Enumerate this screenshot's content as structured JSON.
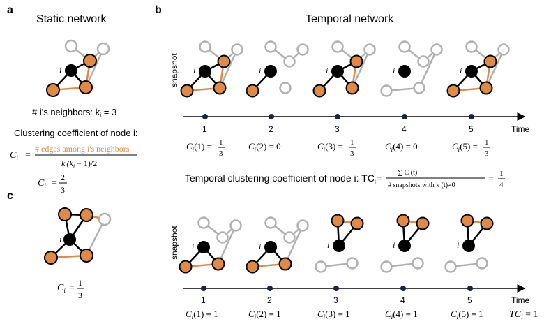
{
  "colors": {
    "orange": "#E08A43",
    "black": "#000000",
    "gray": "#B0B0B0",
    "white": "#FFFFFF"
  },
  "panel_a": {
    "label": "a",
    "title": "Static network",
    "node_i": "i",
    "neighbors_text": "# i's neighbors: k",
    "neighbors_sub": "i",
    "neighbors_eq": " = 3",
    "cc_title": "Clustering coefficient of node i:",
    "ci_lhs": "C",
    "ci_sub": "i",
    "ci_eq": "=",
    "numerator": "# edges among i's neighbors",
    "denominator": "k",
    "denominator_rest": "(k",
    "denominator_tail": " − 1)/2",
    "ci_result_num": "2",
    "ci_result_den": "3"
  },
  "panel_b": {
    "label": "b",
    "title": "Temporal network",
    "y_label": "snapshot",
    "time_label": "Time",
    "ticks": [
      "1",
      "2",
      "3",
      "4",
      "5"
    ],
    "top_values": [
      {
        "lhs": "C",
        "sub": "i",
        "arg": "(1) =",
        "num": "1",
        "den": "3"
      },
      {
        "lhs": "C",
        "sub": "i",
        "arg": "(2) = 0"
      },
      {
        "lhs": "C",
        "sub": "i",
        "arg": "(3) =",
        "num": "1",
        "den": "3"
      },
      {
        "lhs": "C",
        "sub": "i",
        "arg": "(4) = 0"
      },
      {
        "lhs": "C",
        "sub": "i",
        "arg": "(5) =",
        "num": "1",
        "den": "3"
      }
    ],
    "tcc_text": "Temporal clustering coefficient of node i: TC",
    "tcc_sub": "i",
    "tcc_num": "∑ C (t)",
    "tcc_num_sup": "5",
    "tcc_num_lower": "t=1",
    "tcc_den": "# snapshots with k (t)≠0",
    "tcc_eq": "=",
    "tcc_result_num": "1",
    "tcc_result_den": "4",
    "bottom_values": [
      "C(1) = 1",
      "C(2) = 1",
      "C(3) = 1",
      "C(4) = 1",
      "C(5) = 1"
    ],
    "bottom_lhs": "C",
    "bottom_sub": "i",
    "bottom_args": [
      "(1) = 1",
      "(2) = 1",
      "(3) = 1",
      "(4) = 1",
      "(5) = 1"
    ],
    "tc_final_lhs": "TC",
    "tc_final_sub": "i",
    "tc_final_rhs": " = 1"
  },
  "panel_c": {
    "label": "c",
    "node_i": "i",
    "ci_lhs": "C",
    "ci_sub": "i",
    "ci_eq": "=",
    "ci_result_num": "1",
    "ci_result_den": "3"
  }
}
